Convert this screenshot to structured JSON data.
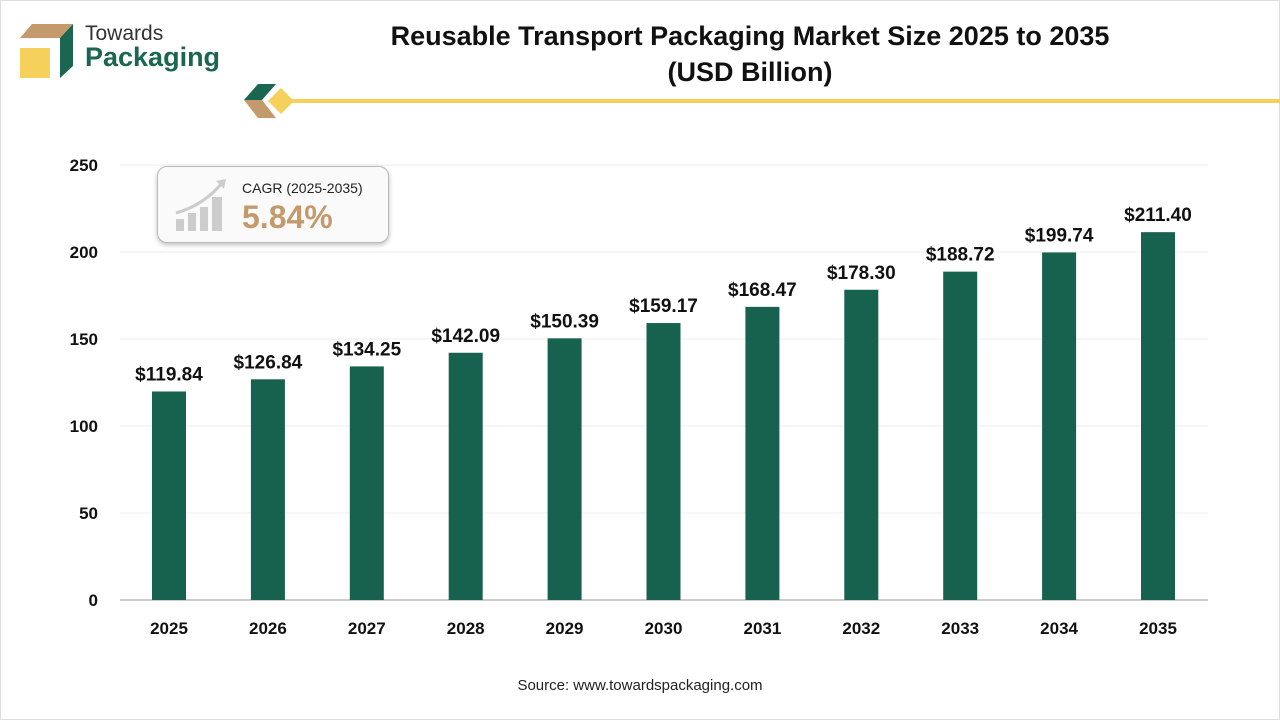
{
  "logo": {
    "line1": "Towards",
    "line2": "Packaging"
  },
  "title_line1": "Reusable Transport Packaging Market Size 2025 to 2035",
  "title_line2": "(USD Billion)",
  "cagr": {
    "label": "CAGR (2025-2035)",
    "value": "5.84%",
    "icon": "growth-chart-icon"
  },
  "source": "Source: www.towardspackaging.com",
  "colors": {
    "bar": "#17614f",
    "accent": "#f5d05a",
    "cagr": "#c49a6c",
    "brown": "#c49a6c"
  },
  "chart_data": {
    "type": "bar",
    "categories": [
      "2025",
      "2026",
      "2027",
      "2028",
      "2029",
      "2030",
      "2031",
      "2032",
      "2033",
      "2034",
      "2035"
    ],
    "values": [
      119.84,
      126.84,
      134.25,
      142.09,
      150.39,
      159.17,
      168.47,
      178.3,
      188.72,
      199.74,
      211.4
    ],
    "data_labels": [
      "$119.84",
      "$126.84",
      "$134.25",
      "$142.09",
      "$150.39",
      "$159.17",
      "$168.47",
      "$178.30",
      "$188.72",
      "$199.74",
      "$211.40"
    ],
    "yticks": [
      0,
      50,
      100,
      150,
      200,
      250
    ],
    "ylim": [
      0,
      250
    ],
    "grid": true,
    "xlabel": "",
    "ylabel": ""
  }
}
